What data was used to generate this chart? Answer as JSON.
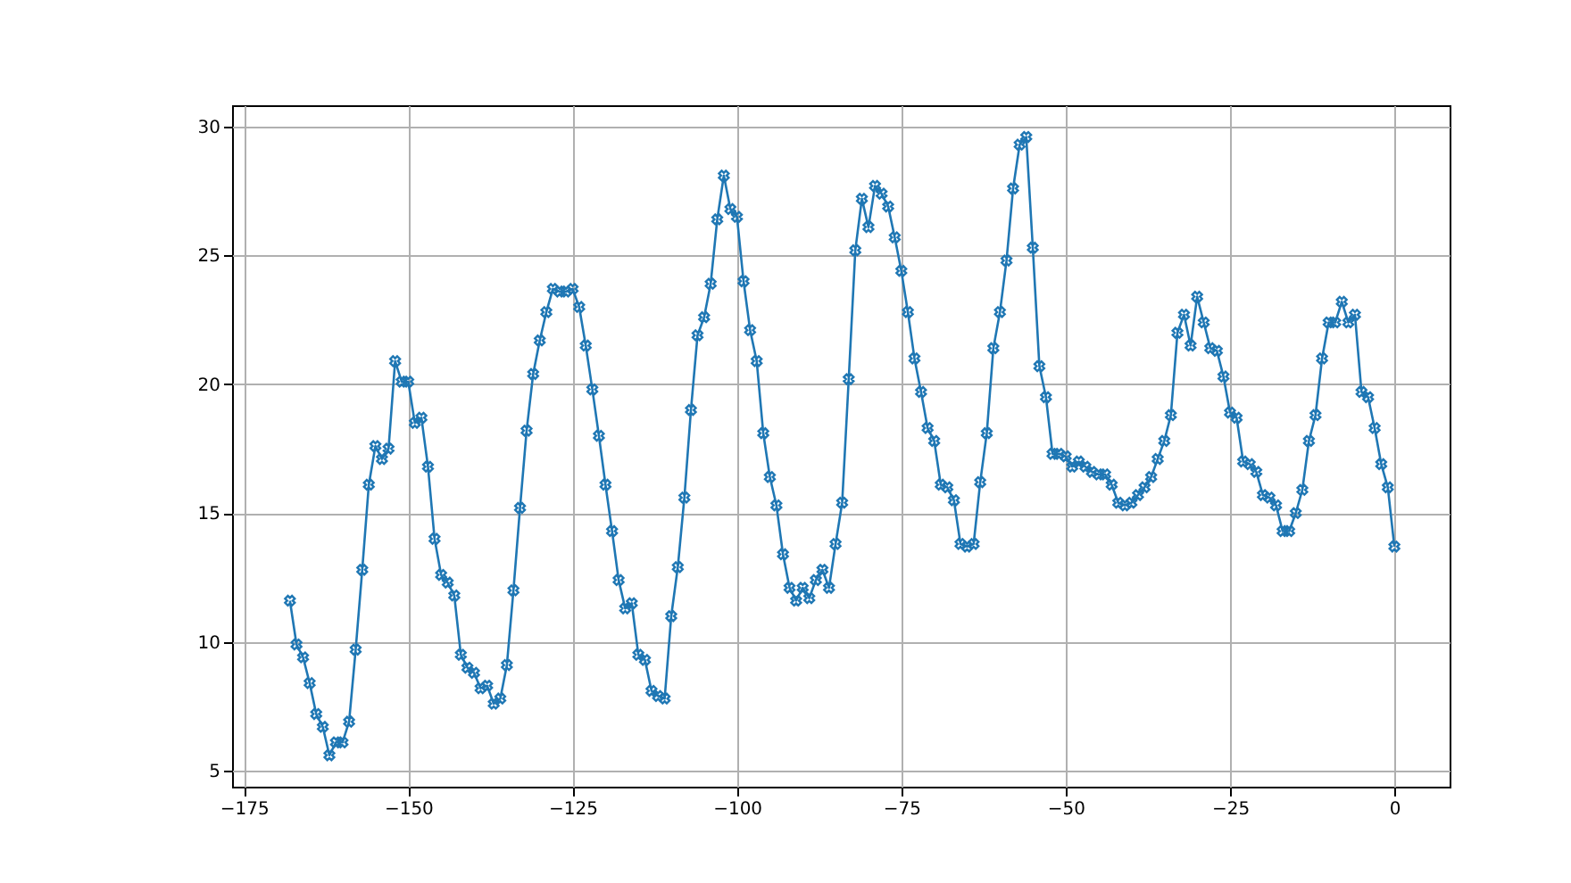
{
  "chart_data": {
    "type": "line",
    "marker": "cross",
    "grid": true,
    "line_style": "solid",
    "xlim": [
      -176.8,
      8.4
    ],
    "ylim": [
      4.38,
      30.83
    ],
    "xticks": [
      -175,
      -150,
      -125,
      -100,
      -75,
      -50,
      -25,
      0
    ],
    "yticks": [
      5,
      10,
      15,
      20,
      25,
      30
    ],
    "x": [
      -168,
      -167,
      -166,
      -165,
      -164,
      -163,
      -162,
      -161,
      -160,
      -159,
      -158,
      -157,
      -156,
      -155,
      -154,
      -153,
      -152,
      -151,
      -150,
      -149,
      -148,
      -147,
      -146,
      -145,
      -144,
      -143,
      -142,
      -141,
      -140,
      -139,
      -138,
      -137,
      -136,
      -135,
      -134,
      -133,
      -132,
      -131,
      -130,
      -129,
      -128,
      -127,
      -126,
      -125,
      -124,
      -123,
      -122,
      -121,
      -120,
      -119,
      -118,
      -117,
      -116,
      -115,
      -114,
      -113,
      -112,
      -111,
      -110,
      -109,
      -108,
      -107,
      -106,
      -105,
      -104,
      -103,
      -102,
      -101,
      -100,
      -99,
      -98,
      -97,
      -96,
      -95,
      -94,
      -93,
      -92,
      -91,
      -90,
      -89,
      -88,
      -87,
      -86,
      -85,
      -84,
      -83,
      -82,
      -81,
      -80,
      -79,
      -78,
      -77,
      -76,
      -75,
      -74,
      -73,
      -72,
      -71,
      -70,
      -69,
      -68,
      -67,
      -66,
      -65,
      -64,
      -63,
      -62,
      -61,
      -60,
      -59,
      -58,
      -57,
      -56,
      -55,
      -54,
      -53,
      -52,
      -51,
      -50,
      -49,
      -48,
      -47,
      -46,
      -45,
      -44,
      -43,
      -42,
      -41,
      -40,
      -39,
      -38,
      -37,
      -36,
      -35,
      -34,
      -33,
      -32,
      -31,
      -30,
      -29,
      -28,
      -27,
      -26,
      -25,
      -24,
      -23,
      -22,
      -21,
      -20,
      -19,
      -18,
      -17,
      -16,
      -15,
      -14,
      -13,
      -12,
      -11,
      -10,
      -9,
      -8,
      -7,
      -6,
      -5,
      -4,
      -3,
      -2,
      -1,
      0
    ],
    "series": [
      {
        "color": "#1f77b4",
        "values": [
          11.6,
          9.9,
          9.4,
          8.4,
          7.2,
          6.7,
          5.6,
          6.1,
          6.1,
          6.9,
          9.7,
          12.8,
          16.1,
          17.6,
          17.1,
          17.5,
          20.9,
          20.1,
          20.1,
          18.5,
          18.7,
          16.8,
          14.0,
          12.6,
          12.3,
          11.8,
          9.5,
          9.0,
          8.8,
          8.2,
          8.3,
          7.6,
          7.8,
          9.1,
          12.0,
          15.2,
          18.2,
          20.4,
          21.7,
          22.8,
          23.7,
          23.6,
          23.6,
          23.7,
          23.0,
          21.5,
          19.8,
          18.0,
          16.1,
          14.3,
          12.4,
          11.3,
          11.5,
          9.5,
          9.3,
          8.1,
          7.9,
          7.8,
          11.0,
          12.9,
          15.6,
          19.0,
          21.9,
          22.6,
          23.9,
          26.4,
          28.1,
          26.8,
          26.5,
          24.0,
          22.1,
          20.9,
          18.1,
          16.4,
          15.3,
          13.4,
          12.1,
          11.6,
          12.1,
          11.7,
          12.4,
          12.8,
          12.1,
          13.8,
          15.4,
          20.2,
          25.2,
          27.2,
          26.1,
          27.7,
          27.4,
          26.9,
          25.7,
          24.4,
          22.8,
          21.0,
          19.7,
          18.3,
          17.8,
          16.1,
          16.0,
          15.5,
          13.8,
          13.7,
          13.8,
          16.2,
          18.1,
          21.4,
          22.8,
          24.8,
          27.6,
          29.3,
          29.6,
          25.3,
          20.7,
          19.5,
          17.3,
          17.3,
          17.2,
          16.8,
          17.0,
          16.8,
          16.6,
          16.5,
          16.5,
          16.1,
          15.4,
          15.3,
          15.4,
          15.7,
          16.0,
          16.4,
          17.1,
          17.8,
          18.8,
          22.0,
          22.7,
          21.5,
          23.4,
          22.4,
          21.4,
          21.3,
          20.3,
          18.9,
          18.7,
          17.0,
          16.9,
          16.6,
          15.7,
          15.6,
          15.3,
          14.3,
          14.3,
          15.0,
          15.9,
          17.8,
          18.8,
          21.0,
          22.4,
          22.4,
          23.2,
          22.4,
          22.7,
          19.7,
          19.5,
          18.3,
          16.9,
          16.0,
          13.7
        ]
      }
    ]
  }
}
